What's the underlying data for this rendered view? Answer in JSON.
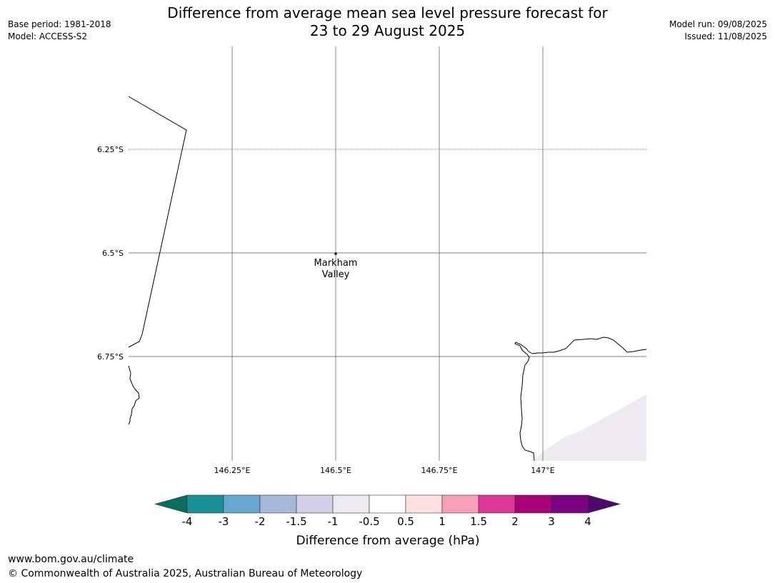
{
  "header": {
    "title_line1": "Difference from average mean sea level pressure forecast for",
    "title_line2": "23 to 29 August 2025",
    "base_period": "Base period: 1981-2018",
    "model": "Model: ACCESS-S2",
    "model_run": "Model run: 09/08/2025",
    "issued": "Issued: 11/08/2025"
  },
  "map": {
    "lat_labels": [
      "6.25°S",
      "6.5°S",
      "6.75°S"
    ],
    "lon_labels": [
      "146.25°E",
      "146.5°E",
      "146.75°E",
      "147°E"
    ],
    "place": {
      "name_line1": "Markham",
      "name_line2": "Valley"
    },
    "land_colors": {
      "coast": "#000000",
      "shading": "#efe9f1"
    }
  },
  "colorbar": {
    "label": "Difference from average (hPa)",
    "ticks": [
      "-4",
      "-3",
      "-2",
      "-1.5",
      "-1",
      "-0.5",
      "0.5",
      "1",
      "1.5",
      "2",
      "3",
      "4"
    ],
    "low_extend_color": "#0a6e5f",
    "high_extend_color": "#4b0a6e",
    "colors": [
      "#1a9097",
      "#67a8d1",
      "#a6b9dc",
      "#d3cfe7",
      "#efe9f1",
      "#ffffff",
      "#fde0df",
      "#f8a1b6",
      "#dc3696",
      "#aa0179",
      "#7b0281"
    ]
  },
  "footer": {
    "url": "www.bom.gov.au/climate",
    "copyright": "© Commonwealth of Australia 2025, Australian Bureau of Meteorology"
  }
}
